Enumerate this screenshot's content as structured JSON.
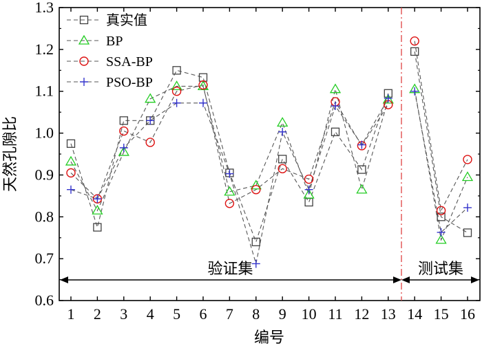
{
  "chart_data": {
    "type": "line",
    "x": [
      1,
      2,
      3,
      4,
      5,
      6,
      7,
      8,
      9,
      10,
      11,
      12,
      13,
      14,
      15,
      16
    ],
    "xlabel": "编号",
    "ylabel": "天然孔隙比",
    "ylim": [
      0.6,
      1.3
    ],
    "yticks": [
      0.6,
      0.7,
      0.8,
      0.9,
      1.0,
      1.1,
      1.2,
      1.3
    ],
    "ytick_labels": [
      "0.6",
      "0.7",
      "0.8",
      "0.9",
      "1.0",
      "1.1",
      "1.2",
      "1.3"
    ],
    "xticks": [
      1,
      2,
      3,
      4,
      5,
      6,
      7,
      8,
      9,
      10,
      11,
      12,
      13,
      14,
      15,
      16
    ],
    "xtick_labels": [
      "1",
      "2",
      "3",
      "4",
      "5",
      "6",
      "7",
      "8",
      "9",
      "10",
      "11",
      "12",
      "13",
      "14",
      "15",
      "16"
    ],
    "series": [
      {
        "name": "真实值",
        "marker": "square",
        "color": "#404040",
        "values": [
          0.975,
          0.775,
          1.03,
          1.03,
          1.15,
          1.133,
          0.905,
          0.74,
          0.938,
          0.835,
          1.003,
          0.913,
          1.095,
          1.195,
          0.8,
          0.762
        ]
      },
      {
        "name": "BP",
        "marker": "triangle",
        "color": "#22cc22",
        "values": [
          0.932,
          0.815,
          0.955,
          1.082,
          1.112,
          1.112,
          0.86,
          0.875,
          1.025,
          0.853,
          1.105,
          0.865,
          1.08,
          1.105,
          0.745,
          0.895
        ]
      },
      {
        "name": "SSA-BP",
        "marker": "circle",
        "color": "#dd1111",
        "values": [
          0.905,
          0.843,
          1.005,
          0.978,
          1.1,
          1.115,
          0.832,
          0.865,
          0.915,
          0.89,
          1.075,
          0.97,
          1.068,
          1.22,
          0.815,
          0.937
        ]
      },
      {
        "name": "PSO-BP",
        "marker": "plus",
        "color": "#3333cc",
        "values": [
          0.865,
          0.843,
          0.965,
          1.03,
          1.072,
          1.072,
          0.903,
          0.688,
          1.003,
          0.865,
          1.065,
          0.972,
          1.083,
          1.1,
          0.763,
          0.822
        ]
      }
    ],
    "annotations": {
      "split_after": 13.5,
      "left_region_label": "验证集",
      "right_region_label": "测试集"
    },
    "legend_position": "top-left",
    "grid": false
  }
}
